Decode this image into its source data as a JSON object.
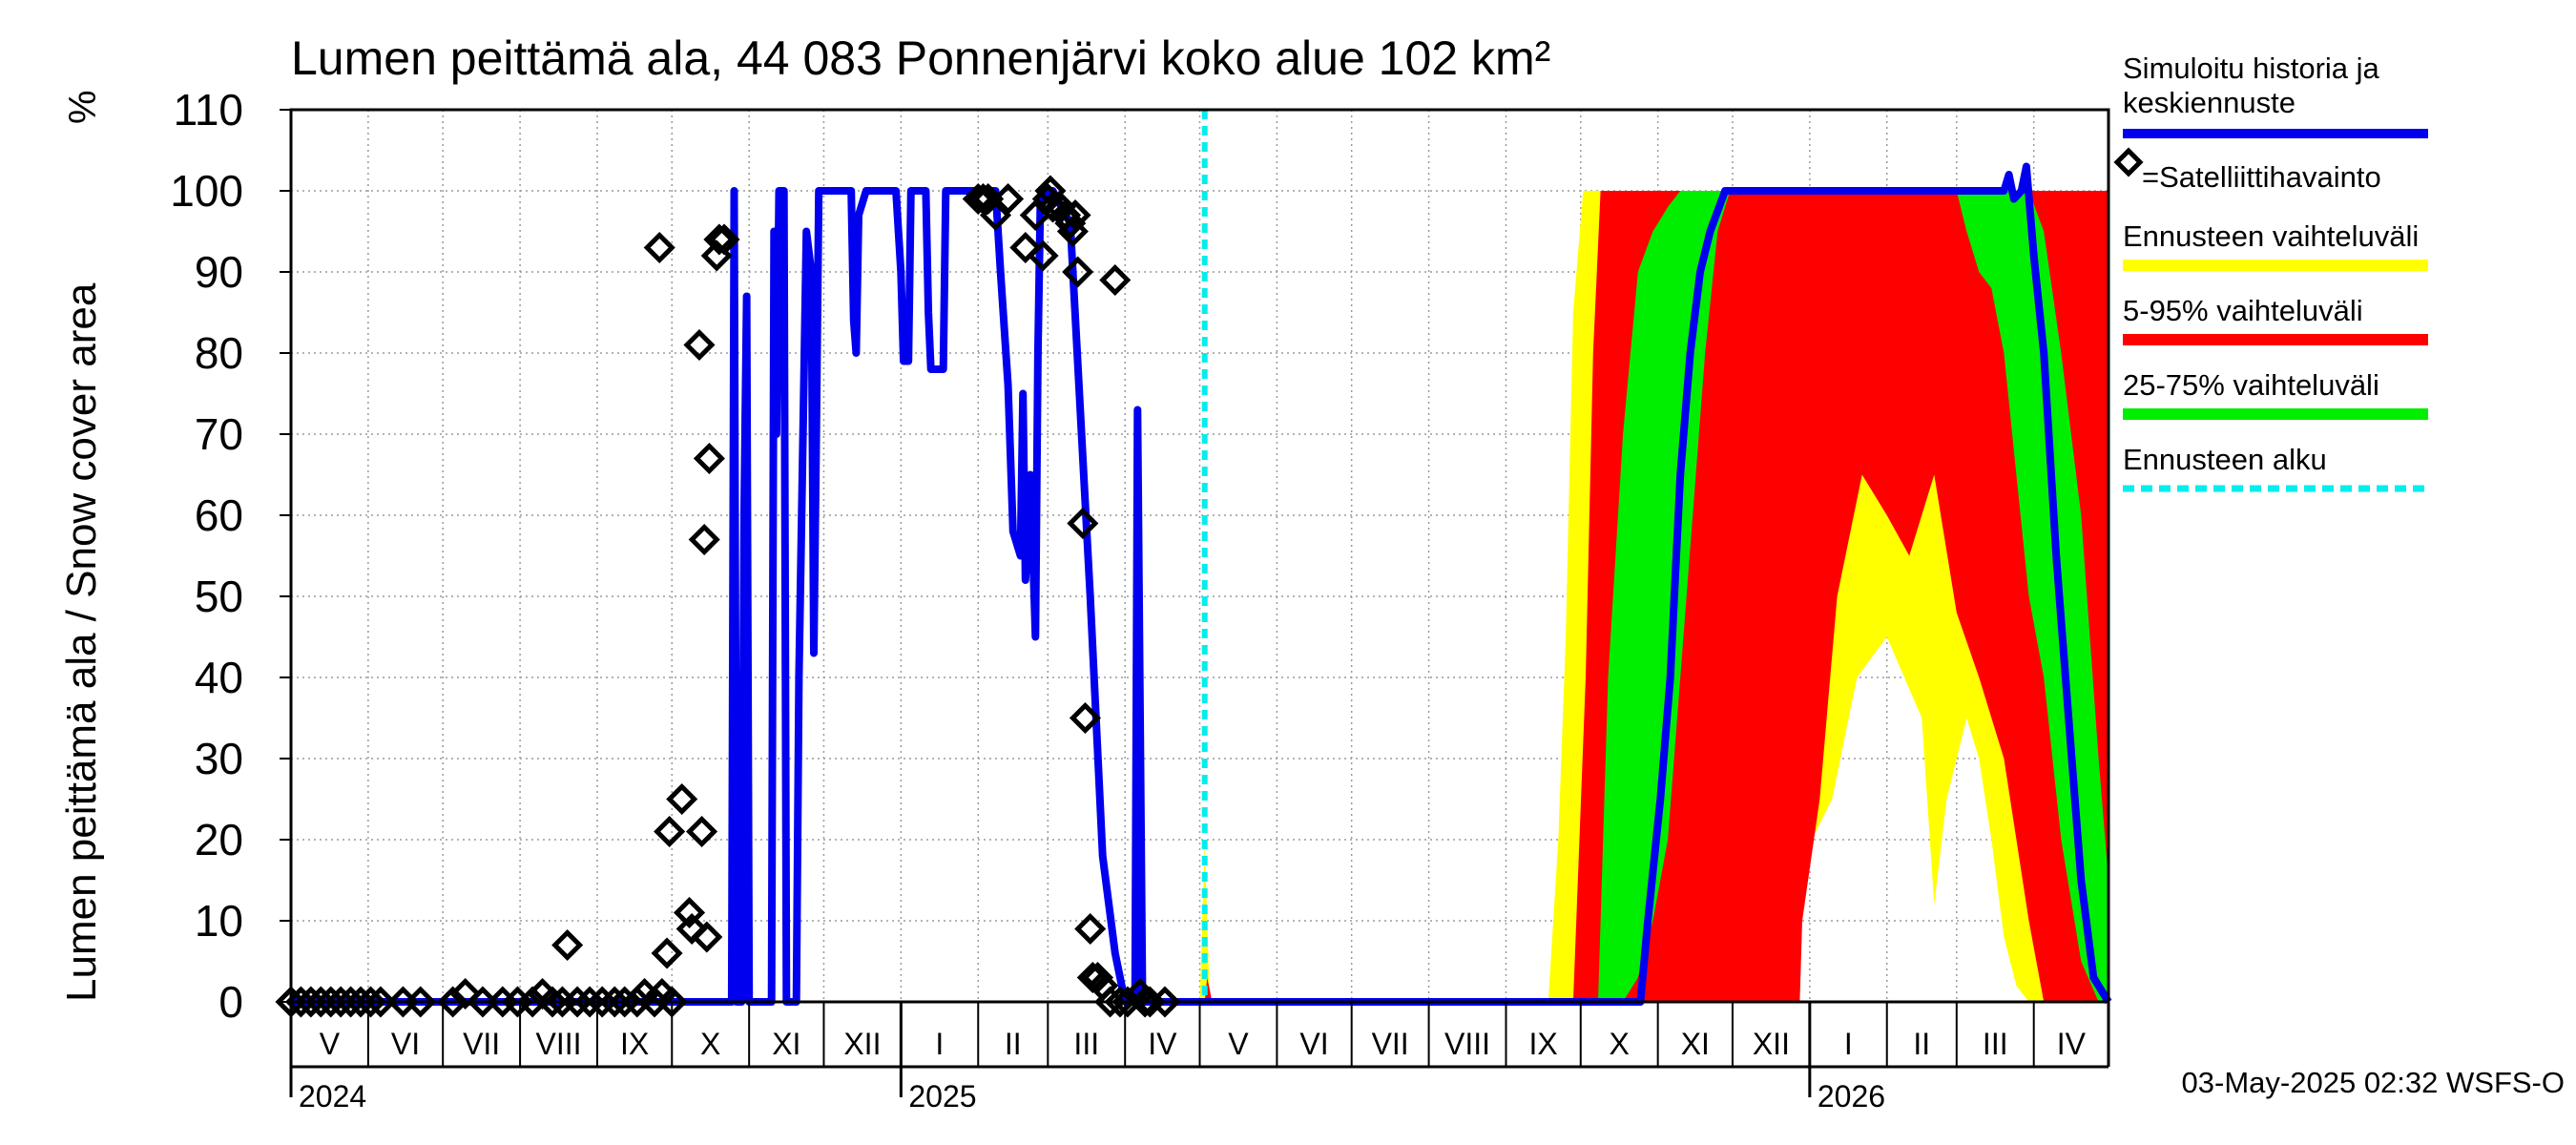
{
  "chart_data": {
    "type": "area",
    "title": "Lumen peittämä ala, 44 083 Ponnenjärvi koko alue 102 km²",
    "ylabel": "Lumen peittämä ala / Snow cover area",
    "yunit": "%",
    "ylim": [
      0,
      110
    ],
    "yticks": [
      0,
      10,
      20,
      30,
      40,
      50,
      60,
      70,
      80,
      90,
      100,
      110
    ],
    "xlim": [
      "2024-05-01",
      "2026-05-01"
    ],
    "grid": true,
    "legend_position": "right",
    "month_labels": [
      {
        "label": "V",
        "start": "2024-05-01",
        "end": "2024-06-01"
      },
      {
        "label": "VI",
        "start": "2024-06-01",
        "end": "2024-07-01"
      },
      {
        "label": "VII",
        "start": "2024-07-01",
        "end": "2024-08-01"
      },
      {
        "label": "VIII",
        "start": "2024-08-01",
        "end": "2024-09-01"
      },
      {
        "label": "IX",
        "start": "2024-09-01",
        "end": "2024-10-01"
      },
      {
        "label": "X",
        "start": "2024-10-01",
        "end": "2024-11-01"
      },
      {
        "label": "XI",
        "start": "2024-11-01",
        "end": "2024-12-01"
      },
      {
        "label": "XII",
        "start": "2024-12-01",
        "end": "2025-01-01"
      },
      {
        "label": "I",
        "start": "2025-01-01",
        "end": "2025-02-01"
      },
      {
        "label": "II",
        "start": "2025-02-01",
        "end": "2025-03-01"
      },
      {
        "label": "III",
        "start": "2025-03-01",
        "end": "2025-04-01"
      },
      {
        "label": "IV",
        "start": "2025-04-01",
        "end": "2025-05-01"
      },
      {
        "label": "V",
        "start": "2025-05-01",
        "end": "2025-06-01"
      },
      {
        "label": "VI",
        "start": "2025-06-01",
        "end": "2025-07-01"
      },
      {
        "label": "VII",
        "start": "2025-07-01",
        "end": "2025-08-01"
      },
      {
        "label": "VIII",
        "start": "2025-08-01",
        "end": "2025-09-01"
      },
      {
        "label": "IX",
        "start": "2025-09-01",
        "end": "2025-10-01"
      },
      {
        "label": "X",
        "start": "2025-10-01",
        "end": "2025-11-01"
      },
      {
        "label": "XI",
        "start": "2025-11-01",
        "end": "2025-12-01"
      },
      {
        "label": "XII",
        "start": "2025-12-01",
        "end": "2026-01-01"
      },
      {
        "label": "I",
        "start": "2026-01-01",
        "end": "2026-02-01"
      },
      {
        "label": "II",
        "start": "2026-02-01",
        "end": "2026-03-01"
      },
      {
        "label": "III",
        "start": "2026-03-01",
        "end": "2026-04-01"
      },
      {
        "label": "IV",
        "start": "2026-04-01",
        "end": "2026-05-01"
      }
    ],
    "year_labels": [
      {
        "label": "2024",
        "date": "2024-05-01"
      },
      {
        "label": "2025",
        "date": "2025-01-01"
      },
      {
        "label": "2026",
        "date": "2026-01-01"
      }
    ],
    "forecast_start": "2025-05-03",
    "legend": [
      {
        "label": "Simuloitu historia ja keskiennuste",
        "color": "#0000ee",
        "kind": "line"
      },
      {
        "label": "=Satelliittihavainto",
        "color": "#000000",
        "kind": "marker"
      },
      {
        "label": "Ennusteen vaihteluväli",
        "color": "#ffff00",
        "kind": "band"
      },
      {
        "label": "5-95% vaihteluväli",
        "color": "#ff0000",
        "kind": "band"
      },
      {
        "label": "25-75% vaihteluväli",
        "color": "#00ee00",
        "kind": "band"
      },
      {
        "label": "Ennusteen alku",
        "color": "#00eeee",
        "kind": "dashed"
      }
    ],
    "series": [
      {
        "name": "Simuloitu historia ja keskiennuste",
        "color": "#0000ee",
        "points": [
          [
            "2024-05-01",
            0
          ],
          [
            "2024-10-25",
            0
          ],
          [
            "2024-10-26",
            100
          ],
          [
            "2024-10-27",
            0
          ],
          [
            "2024-10-29",
            0
          ],
          [
            "2024-10-30",
            60
          ],
          [
            "2024-10-31",
            87
          ],
          [
            "2024-11-01",
            0
          ],
          [
            "2024-11-10",
            0
          ],
          [
            "2024-11-11",
            95
          ],
          [
            "2024-11-12",
            70
          ],
          [
            "2024-11-13",
            100
          ],
          [
            "2024-11-15",
            100
          ],
          [
            "2024-11-16",
            0
          ],
          [
            "2024-11-20",
            0
          ],
          [
            "2024-11-21",
            40
          ],
          [
            "2024-11-24",
            95
          ],
          [
            "2024-11-26",
            90
          ],
          [
            "2024-11-27",
            43
          ],
          [
            "2024-11-28",
            70
          ],
          [
            "2024-11-29",
            100
          ],
          [
            "2024-12-12",
            100
          ],
          [
            "2024-12-13",
            84
          ],
          [
            "2024-12-14",
            80
          ],
          [
            "2024-12-15",
            97
          ],
          [
            "2024-12-18",
            100
          ],
          [
            "2024-12-30",
            100
          ],
          [
            "2025-01-01",
            90
          ],
          [
            "2025-01-02",
            79
          ],
          [
            "2025-01-04",
            79
          ],
          [
            "2025-01-05",
            100
          ],
          [
            "2025-01-11",
            100
          ],
          [
            "2025-01-12",
            85
          ],
          [
            "2025-01-13",
            78
          ],
          [
            "2025-01-18",
            78
          ],
          [
            "2025-01-19",
            100
          ],
          [
            "2025-02-08",
            100
          ],
          [
            "2025-02-10",
            90
          ],
          [
            "2025-02-13",
            76
          ],
          [
            "2025-02-15",
            58
          ],
          [
            "2025-02-18",
            55
          ],
          [
            "2025-02-19",
            75
          ],
          [
            "2025-02-20",
            52
          ],
          [
            "2025-02-22",
            65
          ],
          [
            "2025-02-24",
            45
          ],
          [
            "2025-02-25",
            80
          ],
          [
            "2025-02-26",
            99
          ],
          [
            "2025-03-03",
            100
          ],
          [
            "2025-03-10",
            96
          ],
          [
            "2025-03-18",
            50
          ],
          [
            "2025-03-23",
            18
          ],
          [
            "2025-03-28",
            6
          ],
          [
            "2025-04-01",
            0
          ],
          [
            "2025-04-05",
            0
          ],
          [
            "2025-04-06",
            73
          ],
          [
            "2025-04-08",
            0
          ],
          [
            "2025-05-03",
            0
          ],
          [
            "2025-10-25",
            0
          ],
          [
            "2025-10-28",
            10
          ],
          [
            "2025-11-02",
            25
          ],
          [
            "2025-11-06",
            40
          ],
          [
            "2025-11-10",
            65
          ],
          [
            "2025-11-14",
            80
          ],
          [
            "2025-11-18",
            90
          ],
          [
            "2025-11-22",
            95
          ],
          [
            "2025-11-28",
            100
          ],
          [
            "2026-03-20",
            100
          ],
          [
            "2026-03-22",
            102
          ],
          [
            "2026-03-24",
            99
          ],
          [
            "2026-03-27",
            100
          ],
          [
            "2026-03-29",
            103
          ],
          [
            "2026-04-01",
            92
          ],
          [
            "2026-04-05",
            80
          ],
          [
            "2026-04-10",
            55
          ],
          [
            "2026-04-15",
            35
          ],
          [
            "2026-04-20",
            15
          ],
          [
            "2026-04-25",
            3
          ],
          [
            "2026-05-01",
            0
          ]
        ]
      }
    ],
    "bands": [
      {
        "name": "Ennusteen vaihteluväli",
        "color": "#ffff00",
        "points": [
          [
            "2025-05-01",
            0,
            0
          ],
          [
            "2025-05-03",
            0,
            20
          ],
          [
            "2025-05-05",
            0,
            0
          ],
          [
            "2025-09-18",
            0,
            0
          ],
          [
            "2025-09-22",
            0,
            20
          ],
          [
            "2025-09-25",
            0,
            45
          ],
          [
            "2025-09-28",
            0,
            85
          ],
          [
            "2025-10-02",
            0,
            100
          ],
          [
            "2025-10-04",
            0,
            100
          ],
          [
            "2025-12-27",
            0,
            100
          ],
          [
            "2025-12-28",
            17,
            100
          ],
          [
            "2026-01-10",
            25,
            100
          ],
          [
            "2026-01-20",
            40,
            100
          ],
          [
            "2026-02-01",
            45,
            100
          ],
          [
            "2026-02-15",
            35,
            100
          ],
          [
            "2026-02-20",
            12,
            100
          ],
          [
            "2026-02-25",
            25,
            100
          ],
          [
            "2026-03-05",
            35,
            100
          ],
          [
            "2026-03-10",
            30,
            100
          ],
          [
            "2026-03-15",
            20,
            100
          ],
          [
            "2026-03-20",
            8,
            100
          ],
          [
            "2026-03-25",
            2,
            100
          ],
          [
            "2026-03-30",
            0,
            100
          ],
          [
            "2026-05-01",
            0,
            100
          ]
        ]
      },
      {
        "name": "5-95% vaihteluväli",
        "color": "#ff0000",
        "points": [
          [
            "2025-05-03",
            0,
            0
          ],
          [
            "2025-05-04",
            0,
            3
          ],
          [
            "2025-05-06",
            0,
            0
          ],
          [
            "2025-09-28",
            0,
            0
          ],
          [
            "2025-10-03",
            0,
            40
          ],
          [
            "2025-10-06",
            0,
            80
          ],
          [
            "2025-10-09",
            0,
            100
          ],
          [
            "2025-12-28",
            0,
            100
          ],
          [
            "2025-12-29",
            10,
            100
          ],
          [
            "2026-01-05",
            25,
            100
          ],
          [
            "2026-01-12",
            50,
            100
          ],
          [
            "2026-01-22",
            65,
            100
          ],
          [
            "2026-02-01",
            60,
            100
          ],
          [
            "2026-02-10",
            55,
            100
          ],
          [
            "2026-02-20",
            65,
            100
          ],
          [
            "2026-03-01",
            48,
            100
          ],
          [
            "2026-03-10",
            40,
            100
          ],
          [
            "2026-03-20",
            30,
            100
          ],
          [
            "2026-03-30",
            10,
            100
          ],
          [
            "2026-04-05",
            0,
            100
          ],
          [
            "2026-05-01",
            0,
            100
          ]
        ]
      },
      {
        "name": "25-75% vaihteluväli",
        "color": "#00ee00",
        "points": [
          [
            "2025-10-08",
            0,
            0
          ],
          [
            "2025-10-12",
            0,
            40
          ],
          [
            "2025-10-18",
            0,
            70
          ],
          [
            "2025-10-24",
            3,
            90
          ],
          [
            "2025-10-30",
            10,
            95
          ],
          [
            "2025-11-05",
            20,
            98
          ],
          [
            "2025-11-10",
            40,
            100
          ],
          [
            "2025-11-15",
            60,
            100
          ],
          [
            "2025-11-20",
            80,
            100
          ],
          [
            "2025-11-25",
            95,
            100
          ],
          [
            "2025-11-30",
            100,
            100
          ],
          [
            "2026-03-01",
            100,
            100
          ],
          [
            "2026-03-05",
            95,
            100
          ],
          [
            "2026-03-10",
            90,
            100
          ],
          [
            "2026-03-15",
            88,
            100
          ],
          [
            "2026-03-20",
            80,
            100
          ],
          [
            "2026-03-25",
            65,
            100
          ],
          [
            "2026-03-30",
            50,
            100
          ],
          [
            "2026-04-05",
            40,
            95
          ],
          [
            "2026-04-12",
            20,
            80
          ],
          [
            "2026-04-20",
            5,
            60
          ],
          [
            "2026-04-27",
            0,
            30
          ],
          [
            "2026-05-01",
            0,
            15
          ]
        ]
      }
    ],
    "observations": [
      [
        "2024-05-01",
        0
      ],
      [
        "2024-05-05",
        0
      ],
      [
        "2024-05-09",
        0
      ],
      [
        "2024-05-13",
        0
      ],
      [
        "2024-05-17",
        0
      ],
      [
        "2024-05-21",
        0
      ],
      [
        "2024-05-25",
        0
      ],
      [
        "2024-05-29",
        0
      ],
      [
        "2024-06-02",
        0
      ],
      [
        "2024-06-06",
        0
      ],
      [
        "2024-06-15",
        0
      ],
      [
        "2024-06-22",
        0
      ],
      [
        "2024-07-05",
        0
      ],
      [
        "2024-07-10",
        1
      ],
      [
        "2024-07-17",
        0
      ],
      [
        "2024-07-25",
        0
      ],
      [
        "2024-07-31",
        0
      ],
      [
        "2024-08-06",
        0
      ],
      [
        "2024-08-10",
        1
      ],
      [
        "2024-08-14",
        0
      ],
      [
        "2024-08-18",
        0
      ],
      [
        "2024-08-20",
        7
      ],
      [
        "2024-08-24",
        0
      ],
      [
        "2024-08-29",
        0
      ],
      [
        "2024-09-03",
        0
      ],
      [
        "2024-09-08",
        0
      ],
      [
        "2024-09-12",
        0
      ],
      [
        "2024-09-17",
        0
      ],
      [
        "2024-09-20",
        1
      ],
      [
        "2024-09-24",
        0
      ],
      [
        "2024-09-27",
        1
      ],
      [
        "2024-10-01",
        0
      ],
      [
        "2024-09-26",
        93
      ],
      [
        "2024-09-29",
        6
      ],
      [
        "2024-09-30",
        21
      ],
      [
        "2024-10-05",
        25
      ],
      [
        "2024-10-08",
        11
      ],
      [
        "2024-10-09",
        9
      ],
      [
        "2024-10-12",
        81
      ],
      [
        "2024-10-13",
        21
      ],
      [
        "2024-10-14",
        57
      ],
      [
        "2024-10-15",
        8
      ],
      [
        "2024-10-16",
        67
      ],
      [
        "2024-10-19",
        92
      ],
      [
        "2024-10-20",
        94
      ],
      [
        "2024-10-22",
        94
      ],
      [
        "2025-02-01",
        99
      ],
      [
        "2025-02-03",
        99
      ],
      [
        "2025-02-05",
        99
      ],
      [
        "2025-02-08",
        97
      ],
      [
        "2025-02-13",
        99
      ],
      [
        "2025-02-20",
        93
      ],
      [
        "2025-02-24",
        97
      ],
      [
        "2025-02-27",
        92
      ],
      [
        "2025-03-01",
        99
      ],
      [
        "2025-03-02",
        100
      ],
      [
        "2025-03-03",
        98
      ],
      [
        "2025-03-06",
        98
      ],
      [
        "2025-03-08",
        97
      ],
      [
        "2025-03-10",
        96
      ],
      [
        "2025-03-11",
        95
      ],
      [
        "2025-03-12",
        97
      ],
      [
        "2025-03-13",
        90
      ],
      [
        "2025-03-15",
        59
      ],
      [
        "2025-03-16",
        35
      ],
      [
        "2025-03-18",
        9
      ],
      [
        "2025-03-19",
        3
      ],
      [
        "2025-03-21",
        3
      ],
      [
        "2025-03-23",
        2
      ],
      [
        "2025-03-26",
        0
      ],
      [
        "2025-03-28",
        89
      ],
      [
        "2025-03-30",
        0
      ],
      [
        "2025-04-02",
        0
      ],
      [
        "2025-04-07",
        1
      ],
      [
        "2025-04-09",
        0
      ],
      [
        "2025-04-11",
        0
      ],
      [
        "2025-04-17",
        0
      ]
    ],
    "footer": "03-May-2025 02:32 WSFS-O"
  }
}
